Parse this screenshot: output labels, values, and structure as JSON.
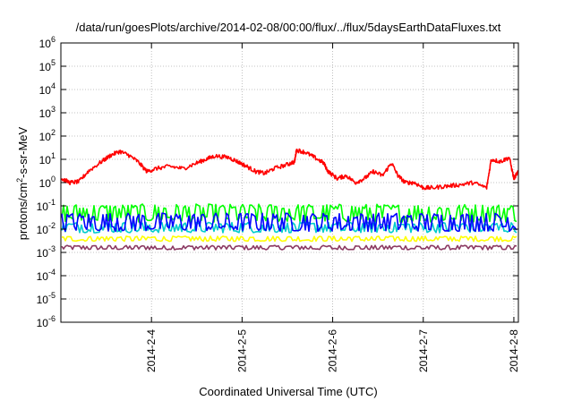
{
  "chart_data": {
    "type": "line",
    "title": "/data/run/goesPlots/archive/2014-02-08/00:00/flux/../flux/5daysEarthDataFluxes.txt",
    "xlabel": "Coordinated Universal Time (UTC)",
    "ylabel_parts": {
      "base": "protons/cm",
      "sup": "2",
      "rest": "-s-sr-MeV"
    },
    "yscale": "log",
    "ylim": [
      1e-06,
      1000000.0
    ],
    "ytick_exponents": [
      -6,
      -5,
      -4,
      -3,
      -2,
      -1,
      0,
      1,
      2,
      3,
      4,
      5,
      6
    ],
    "ytick_base": "10",
    "xlim": [
      3.0,
      8.05
    ],
    "xticks": [
      {
        "value": 4,
        "label": "2014-2-4"
      },
      {
        "value": 5,
        "label": "2014-2-5"
      },
      {
        "value": 6,
        "label": "2014-2-6"
      },
      {
        "value": 7,
        "label": "2014-2-7"
      },
      {
        "value": 8,
        "label": "2014-2-8"
      }
    ],
    "grid": true,
    "series": [
      {
        "color": "#ff0000",
        "kind": "profile",
        "points": [
          [
            3.0,
            1.5
          ],
          [
            3.1,
            1.0
          ],
          [
            3.2,
            1.1
          ],
          [
            3.3,
            3.0
          ],
          [
            3.45,
            8
          ],
          [
            3.55,
            15
          ],
          [
            3.65,
            22
          ],
          [
            3.75,
            15
          ],
          [
            3.85,
            8
          ],
          [
            3.95,
            3.0
          ],
          [
            4.05,
            4.0
          ],
          [
            4.2,
            5.0
          ],
          [
            4.35,
            4.0
          ],
          [
            4.5,
            7
          ],
          [
            4.6,
            10
          ],
          [
            4.7,
            14
          ],
          [
            4.85,
            12
          ],
          [
            4.95,
            8
          ],
          [
            5.05,
            5
          ],
          [
            5.15,
            3.0
          ],
          [
            5.25,
            2.5
          ],
          [
            5.35,
            4.0
          ],
          [
            5.5,
            6
          ],
          [
            5.58,
            8
          ],
          [
            5.6,
            25
          ],
          [
            5.7,
            20
          ],
          [
            5.8,
            12
          ],
          [
            5.9,
            7
          ],
          [
            5.95,
            3.0
          ],
          [
            6.05,
            1.5
          ],
          [
            6.15,
            2.0
          ],
          [
            6.25,
            1.0
          ],
          [
            6.35,
            1.5
          ],
          [
            6.45,
            3
          ],
          [
            6.55,
            2.0
          ],
          [
            6.65,
            7
          ],
          [
            6.72,
            2.0
          ],
          [
            6.8,
            1.0
          ],
          [
            6.9,
            1.0
          ],
          [
            7.0,
            0.6
          ],
          [
            7.1,
            0.6
          ],
          [
            7.25,
            0.7
          ],
          [
            7.4,
            0.8
          ],
          [
            7.55,
            1.0
          ],
          [
            7.7,
            0.6
          ],
          [
            7.75,
            10
          ],
          [
            7.85,
            8
          ],
          [
            7.95,
            12
          ],
          [
            8.0,
            1.5
          ],
          [
            8.05,
            3
          ]
        ]
      },
      {
        "color": "#00ff00",
        "kind": "band",
        "low": 0.02,
        "high": 0.12
      },
      {
        "color": "#0000ff",
        "kind": "band",
        "low": 0.008,
        "high": 0.05
      },
      {
        "color": "#00cccc",
        "kind": "band",
        "low": 0.007,
        "high": 0.02
      },
      {
        "color": "#ffff00",
        "kind": "band",
        "low": 0.003,
        "high": 0.005
      },
      {
        "color": "#8b3a62",
        "kind": "band",
        "low": 0.0013,
        "high": 0.002
      }
    ]
  }
}
